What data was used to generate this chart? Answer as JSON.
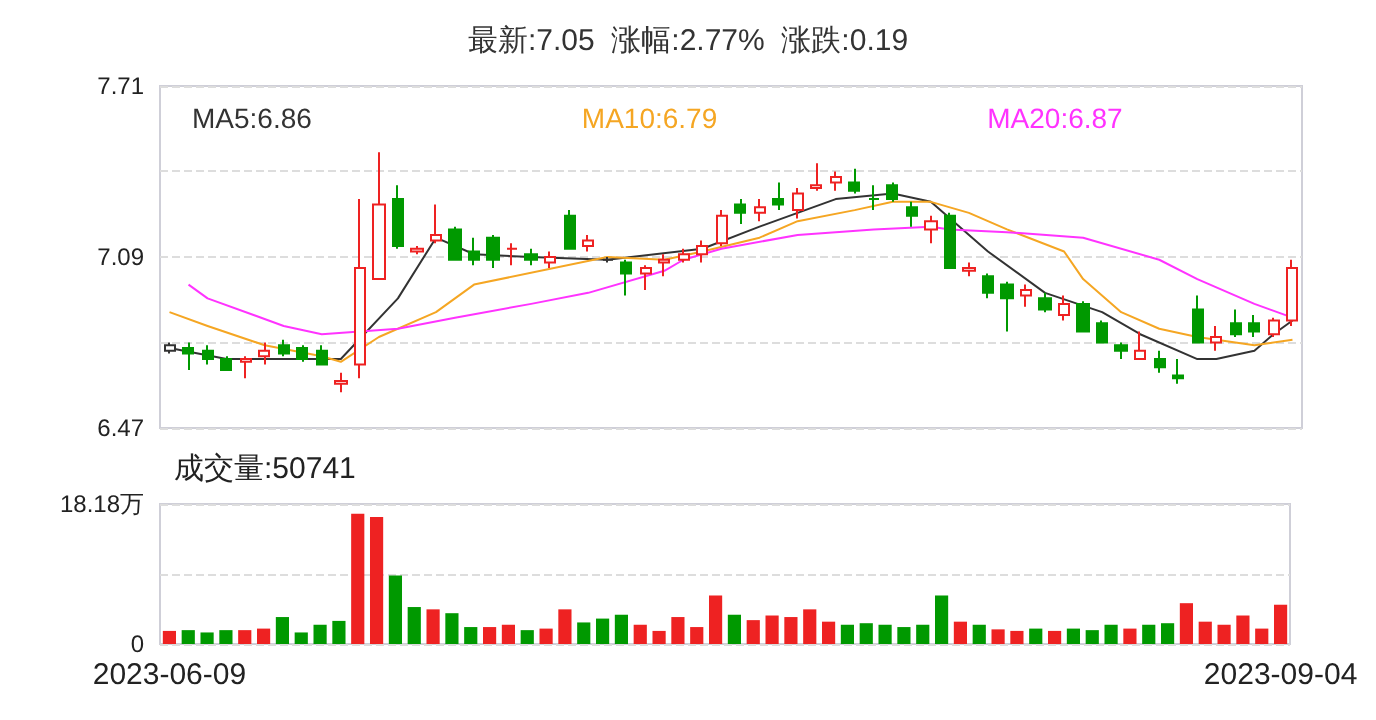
{
  "chart_data": [
    {
      "type": "candlestick",
      "title": "最新:7.05  涨幅:2.77%  涨跌:0.19",
      "categories": [
        null,
        null,
        null,
        null,
        null,
        null,
        null,
        null,
        null,
        null,
        null,
        null,
        null,
        null,
        null,
        null,
        null,
        null,
        null,
        null,
        null,
        null,
        null,
        null,
        null,
        null,
        null,
        null,
        null,
        null,
        null,
        null,
        null,
        null,
        null,
        null,
        null,
        null,
        null,
        null,
        null,
        null,
        null,
        null,
        null,
        null,
        null,
        null,
        null,
        null,
        null,
        null,
        null,
        null,
        null,
        null,
        null,
        null,
        null,
        null
      ],
      "ohlc": [
        [
          6.75,
          6.78,
          6.74,
          6.77
        ],
        [
          6.76,
          6.78,
          6.68,
          6.74
        ],
        [
          6.75,
          6.77,
          6.7,
          6.72
        ],
        [
          6.72,
          6.73,
          6.68,
          6.68
        ],
        [
          6.71,
          6.73,
          6.65,
          6.72
        ],
        [
          6.73,
          6.78,
          6.7,
          6.75
        ],
        [
          6.77,
          6.79,
          6.73,
          6.74
        ],
        [
          6.76,
          6.77,
          6.71,
          6.72
        ],
        [
          6.75,
          6.77,
          6.7,
          6.7
        ],
        [
          6.63,
          6.67,
          6.6,
          6.64
        ],
        [
          6.7,
          7.3,
          6.65,
          7.05
        ],
        [
          7.01,
          7.47,
          7.01,
          7.28
        ],
        [
          7.3,
          7.35,
          7.12,
          7.13
        ],
        [
          7.11,
          7.13,
          7.1,
          7.12
        ],
        [
          7.15,
          7.28,
          7.14,
          7.17
        ],
        [
          7.19,
          7.2,
          7.08,
          7.08
        ],
        [
          7.11,
          7.16,
          7.06,
          7.08
        ],
        [
          7.16,
          7.17,
          7.05,
          7.08
        ],
        [
          7.12,
          7.14,
          7.06,
          7.12
        ],
        [
          7.1,
          7.12,
          7.06,
          7.08
        ],
        [
          7.07,
          7.11,
          7.05,
          7.09
        ],
        [
          7.24,
          7.26,
          7.12,
          7.12
        ],
        [
          7.13,
          7.17,
          7.11,
          7.15
        ],
        [
          7.08,
          7.09,
          7.07,
          7.08
        ],
        [
          7.07,
          7.08,
          6.95,
          7.03
        ],
        [
          7.03,
          7.06,
          6.97,
          7.05
        ],
        [
          7.07,
          7.1,
          7.02,
          7.08
        ],
        [
          7.08,
          7.12,
          7.07,
          7.1
        ],
        [
          7.1,
          7.15,
          7.07,
          7.13
        ],
        [
          7.14,
          7.26,
          7.13,
          7.24
        ],
        [
          7.28,
          7.3,
          7.21,
          7.25
        ],
        [
          7.25,
          7.3,
          7.22,
          7.27
        ],
        [
          7.3,
          7.36,
          7.26,
          7.28
        ],
        [
          7.26,
          7.34,
          7.23,
          7.32
        ],
        [
          7.34,
          7.43,
          7.33,
          7.35
        ],
        [
          7.36,
          7.4,
          7.33,
          7.38
        ],
        [
          7.36,
          7.41,
          7.32,
          7.33
        ],
        [
          7.3,
          7.35,
          7.26,
          7.3
        ],
        [
          7.35,
          7.36,
          7.29,
          7.3
        ],
        [
          7.27,
          7.29,
          7.2,
          7.24
        ],
        [
          7.19,
          7.24,
          7.14,
          7.22
        ],
        [
          7.24,
          7.25,
          7.05,
          7.05
        ],
        [
          7.04,
          7.07,
          7.02,
          7.05
        ],
        [
          7.02,
          7.03,
          6.94,
          6.96
        ],
        [
          6.99,
          7.0,
          6.82,
          6.94
        ],
        [
          6.95,
          6.99,
          6.91,
          6.97
        ],
        [
          6.94,
          6.96,
          6.89,
          6.9
        ],
        [
          6.88,
          6.95,
          6.86,
          6.92
        ],
        [
          6.92,
          6.93,
          6.82,
          6.82
        ],
        [
          6.85,
          6.86,
          6.78,
          6.78
        ],
        [
          6.77,
          6.78,
          6.72,
          6.75
        ],
        [
          6.72,
          6.82,
          6.72,
          6.75
        ],
        [
          6.72,
          6.75,
          6.67,
          6.69
        ],
        [
          6.66,
          6.72,
          6.63,
          6.65
        ],
        [
          6.9,
          6.95,
          6.78,
          6.78
        ],
        [
          6.78,
          6.84,
          6.75,
          6.8
        ],
        [
          6.85,
          6.9,
          6.8,
          6.81
        ],
        [
          6.85,
          6.88,
          6.8,
          6.82
        ],
        [
          6.81,
          6.87,
          6.8,
          6.86
        ],
        [
          6.86,
          7.08,
          6.84,
          7.05
        ]
      ],
      "colors": [
        "#333333",
        "#009900",
        "#009900",
        "#009900",
        "#ee2222",
        "#ee2222",
        "#009900",
        "#009900",
        "#009900",
        "#ee2222",
        "#ee2222",
        "#ee2222",
        "#009900",
        "#ee2222",
        "#ee2222",
        "#009900",
        "#009900",
        "#009900",
        "#ee2222",
        "#009900",
        "#ee2222",
        "#009900",
        "#ee2222",
        "#333333",
        "#009900",
        "#ee2222",
        "#ee2222",
        "#ee2222",
        "#ee2222",
        "#ee2222",
        "#009900",
        "#ee2222",
        "#009900",
        "#ee2222",
        "#ee2222",
        "#ee2222",
        "#009900",
        "#009900",
        "#009900",
        "#009900",
        "#ee2222",
        "#009900",
        "#ee2222",
        "#009900",
        "#009900",
        "#ee2222",
        "#009900",
        "#ee2222",
        "#009900",
        "#009900",
        "#009900",
        "#ee2222",
        "#009900",
        "#009900",
        "#009900",
        "#ee2222",
        "#009900",
        "#009900",
        "#ee2222",
        "#ee2222"
      ],
      "series": [
        {
          "type": "line",
          "name": "MA5:6.86",
          "color": "#333333",
          "values": [
            6.76,
            null,
            null,
            6.72,
            null,
            null,
            6.72,
            null,
            null,
            6.72,
            null,
            null,
            6.94,
            null,
            7.16,
            null,
            7.1,
            null,
            null,
            7.09,
            null,
            null,
            null,
            7.08,
            null,
            null,
            null,
            null,
            7.12,
            null,
            null,
            7.2,
            null,
            7.25,
            null,
            7.3,
            null,
            null,
            7.32,
            null,
            7.29,
            null,
            null,
            7.11,
            null,
            null,
            6.96,
            null,
            null,
            6.89,
            null,
            6.81,
            null,
            null,
            6.72,
            6.72,
            null,
            6.75,
            6.81,
            6.86
          ]
        },
        {
          "type": "line",
          "name": "MA10:6.79",
          "color": "#f5a623",
          "values": [
            6.89,
            null,
            6.84,
            null,
            null,
            6.77,
            null,
            null,
            6.73,
            6.71,
            null,
            6.8,
            null,
            null,
            6.89,
            null,
            6.99,
            null,
            null,
            null,
            null,
            null,
            null,
            7.09,
            null,
            null,
            7.08,
            null,
            7.11,
            null,
            null,
            7.16,
            null,
            7.22,
            null,
            null,
            7.26,
            null,
            7.29,
            null,
            7.29,
            null,
            7.25,
            null,
            7.19,
            null,
            null,
            7.11,
            7.01,
            null,
            6.89,
            null,
            6.83,
            null,
            6.8,
            null,
            6.78,
            6.77,
            null,
            6.79
          ]
        },
        {
          "type": "line",
          "name": "MA20:6.87",
          "color": "#ff33ff",
          "values": [
            null,
            6.99,
            6.94,
            null,
            null,
            null,
            6.84,
            null,
            6.81,
            null,
            6.82,
            null,
            6.83,
            null,
            null,
            6.87,
            null,
            null,
            null,
            6.92,
            null,
            null,
            6.96,
            null,
            null,
            null,
            7.04,
            7.08,
            null,
            7.12,
            null,
            null,
            null,
            7.17,
            null,
            null,
            null,
            7.19,
            null,
            null,
            7.2,
            7.19,
            null,
            null,
            7.18,
            null,
            null,
            null,
            7.16,
            null,
            null,
            null,
            7.08,
            null,
            7.01,
            null,
            null,
            6.92,
            null,
            6.87
          ]
        }
      ],
      "ylim": [
        6.47,
        7.71
      ],
      "yticks": [
        6.47,
        {
          "value": 6.78,
          "label": null
        },
        7.09,
        {
          "value": 7.4,
          "label": null
        },
        7.71
      ],
      "grid": "y",
      "legend": "top left",
      "marker": "none",
      "tick_labels": "y"
    },
    {
      "type": "bar",
      "title": "成交量:50741",
      "categories": [
        "2023-06-09",
        null,
        null,
        null,
        null,
        null,
        null,
        null,
        null,
        null,
        null,
        null,
        null,
        null,
        null,
        null,
        null,
        null,
        null,
        null,
        null,
        null,
        null,
        null,
        null,
        null,
        null,
        null,
        null,
        null,
        null,
        null,
        null,
        null,
        null,
        null,
        null,
        null,
        null,
        null,
        null,
        null,
        null,
        null,
        null,
        null,
        null,
        null,
        null,
        null,
        null,
        null,
        null,
        null,
        null,
        null,
        null,
        null,
        null,
        "2023-09-04"
      ],
      "values": [
        1.7,
        1.8,
        1.5,
        1.8,
        1.8,
        2.0,
        3.5,
        1.5,
        2.5,
        3.0,
        16.9,
        16.5,
        8.9,
        4.8,
        4.5,
        4.0,
        2.2,
        2.2,
        2.5,
        1.8,
        2.0,
        4.5,
        2.8,
        3.3,
        3.8,
        2.5,
        1.7,
        3.5,
        2.2,
        6.3,
        3.8,
        3.1,
        3.7,
        3.5,
        4.5,
        2.9,
        2.5,
        2.7,
        2.5,
        2.2,
        2.5,
        6.3,
        2.9,
        2.5,
        1.9,
        1.7,
        2.0,
        1.7,
        2.0,
        1.8,
        2.5,
        2.0,
        2.5,
        2.7,
        5.3,
        2.9,
        2.5,
        3.7,
        2.0,
        5.1
      ],
      "colors": [
        "#ee2222",
        "#009900",
        "#009900",
        "#009900",
        "#ee2222",
        "#ee2222",
        "#009900",
        "#009900",
        "#009900",
        "#009900",
        "#ee2222",
        "#ee2222",
        "#009900",
        "#009900",
        "#ee2222",
        "#009900",
        "#009900",
        "#ee2222",
        "#ee2222",
        "#009900",
        "#ee2222",
        "#ee2222",
        "#009900",
        "#009900",
        "#009900",
        "#ee2222",
        "#ee2222",
        "#ee2222",
        "#ee2222",
        "#ee2222",
        "#009900",
        "#ee2222",
        "#ee2222",
        "#ee2222",
        "#ee2222",
        "#ee2222",
        "#009900",
        "#009900",
        "#009900",
        "#009900",
        "#009900",
        "#009900",
        "#ee2222",
        "#009900",
        "#ee2222",
        "#ee2222",
        "#009900",
        "#ee2222",
        "#009900",
        "#009900",
        "#009900",
        "#ee2222",
        "#009900",
        "#009900",
        "#ee2222",
        "#ee2222",
        "#ee2222",
        "#ee2222",
        "#ee2222",
        "#ee2222"
      ],
      "ylim": [
        0,
        18.18
      ],
      "yticks": [
        0,
        {
          "value": 9.09,
          "label": null
        },
        {
          "value": 18.18,
          "label": "18.18万"
        }
      ],
      "grid": "y"
    }
  ]
}
